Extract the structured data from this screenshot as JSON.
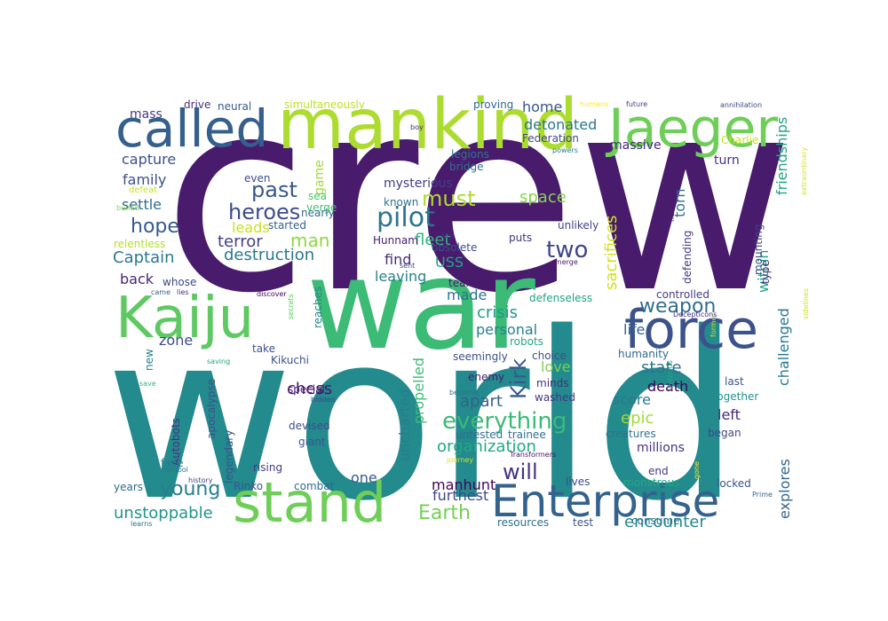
{
  "chart_data": {
    "type": "wordcloud",
    "words": [
      {
        "text": "crew",
        "color": "#481b6d"
      },
      {
        "text": "world",
        "color": "#238a8d"
      },
      {
        "text": "war",
        "color": "#3bbb75"
      },
      {
        "text": "mankind",
        "color": "#addc30"
      },
      {
        "text": "called",
        "color": "#355f8d"
      },
      {
        "text": "Jaeger",
        "color": "#6ece58"
      },
      {
        "text": "Kaiju",
        "color": "#5ec962"
      },
      {
        "text": "force",
        "color": "#3b528b"
      },
      {
        "text": "stand",
        "color": "#6ece58"
      },
      {
        "text": "Enterprise",
        "color": "#33638d"
      },
      {
        "text": "everything",
        "color": "#3aba76"
      },
      {
        "text": "heroes",
        "color": "#3e4c8a"
      },
      {
        "text": "pilot",
        "color": "#2c738e"
      },
      {
        "text": "must",
        "color": "#addc30"
      },
      {
        "text": "two",
        "color": "#404588"
      },
      {
        "text": "past",
        "color": "#38588c"
      },
      {
        "text": "hope",
        "color": "#375b8d"
      },
      {
        "text": "man",
        "color": "#90d743"
      },
      {
        "text": "weapon",
        "color": "#2e6e8e"
      },
      {
        "text": "Kirk",
        "color": "#38588c"
      },
      {
        "text": "will",
        "color": "#46327e"
      },
      {
        "text": "Earth",
        "color": "#75d054"
      },
      {
        "text": "unstoppable",
        "color": "#1f968b"
      },
      {
        "text": "young",
        "color": "#277f8e"
      },
      {
        "text": "encounter",
        "color": "#24878e"
      },
      {
        "text": "organization",
        "color": "#22a884"
      },
      {
        "text": "destruction",
        "color": "#2a778e"
      },
      {
        "text": "terror",
        "color": "#423f85"
      },
      {
        "text": "Captain",
        "color": "#2a788e"
      },
      {
        "text": "leads",
        "color": "#c8e020"
      },
      {
        "text": "fleet",
        "color": "#2fb47c"
      },
      {
        "text": "detonated",
        "color": "#2a778e"
      },
      {
        "text": "home",
        "color": "#39568c"
      },
      {
        "text": "space",
        "color": "#86d549"
      },
      {
        "text": "capture",
        "color": "#3c4f8a"
      },
      {
        "text": "family",
        "color": "#3c508b"
      },
      {
        "text": "settle",
        "color": "#2f6c8e"
      },
      {
        "text": "mass",
        "color": "#453781"
      },
      {
        "text": "back",
        "color": "#482576"
      },
      {
        "text": "zone",
        "color": "#3e4989"
      },
      {
        "text": "life",
        "color": "#31668e"
      },
      {
        "text": "crisis",
        "color": "#1f988b"
      },
      {
        "text": "personal",
        "color": "#26818e"
      },
      {
        "text": "state",
        "color": "#2c738e"
      },
      {
        "text": "love",
        "color": "#7ad151"
      },
      {
        "text": "death",
        "color": "#440154"
      },
      {
        "text": "score",
        "color": "#297a8e"
      },
      {
        "text": "epic",
        "color": "#a2da37"
      },
      {
        "text": "left",
        "color": "#472d7b"
      },
      {
        "text": "chess",
        "color": "#481668"
      },
      {
        "text": "uncharted",
        "color": "#287d8e"
      },
      {
        "text": "propelled",
        "color": "#3dbc74"
      },
      {
        "text": "apart",
        "color": "#34618d"
      },
      {
        "text": "sacrifices",
        "color": "#d2e21b"
      },
      {
        "text": "friendships",
        "color": "#20a486"
      },
      {
        "text": "within",
        "color": "#1fa088"
      },
      {
        "text": "challenged",
        "color": "#2a788e"
      },
      {
        "text": "explores",
        "color": "#31668e"
      },
      {
        "text": "torn",
        "color": "#2d708e"
      },
      {
        "text": "find",
        "color": "#472d7b"
      },
      {
        "text": "leaving",
        "color": "#25838e"
      },
      {
        "text": "made",
        "color": "#2c728e"
      },
      {
        "text": "USS",
        "color": "#21a685"
      },
      {
        "text": "one",
        "color": "#365c8d"
      },
      {
        "text": "furthest",
        "color": "#3f4788"
      },
      {
        "text": "manhunt",
        "color": "#450457"
      },
      {
        "text": "massive",
        "color": "#482878"
      },
      {
        "text": "Federation",
        "color": "#3e4989"
      },
      {
        "text": "proving",
        "color": "#31678e"
      },
      {
        "text": "simultaneously",
        "color": "#c0df25"
      },
      {
        "text": "drive",
        "color": "#46327e"
      },
      {
        "text": "neural",
        "color": "#38598c"
      },
      {
        "text": "game",
        "color": "#a0da39"
      },
      {
        "text": "sea",
        "color": "#4ac16d"
      },
      {
        "text": "verge",
        "color": "#48c16e"
      },
      {
        "text": "nearly",
        "color": "#2f6c8e"
      },
      {
        "text": "started",
        "color": "#34618d"
      },
      {
        "text": "even",
        "color": "#3e4c8a"
      },
      {
        "text": "mysterious",
        "color": "#433e85"
      },
      {
        "text": "known",
        "color": "#2d718e"
      },
      {
        "text": "obsolete",
        "color": "#3c4f8a"
      },
      {
        "text": "Hunnam",
        "color": "#481a6c"
      },
      {
        "text": "teamed",
        "color": "#481b6d"
      },
      {
        "text": "legions",
        "color": "#2a778e"
      },
      {
        "text": "bridge",
        "color": "#2c738e"
      },
      {
        "text": "unlikely",
        "color": "#404588"
      },
      {
        "text": "puts",
        "color": "#46327e"
      },
      {
        "text": "defenseless",
        "color": "#20a486"
      },
      {
        "text": "controlled",
        "color": "#433e85"
      },
      {
        "text": "defending",
        "color": "#453882"
      },
      {
        "text": "turn",
        "color": "#46327e"
      },
      {
        "text": "Charlie",
        "color": "#c2df23"
      },
      {
        "text": "mounting",
        "color": "#414487"
      },
      {
        "text": "type",
        "color": "#472c7a"
      },
      {
        "text": "humanity",
        "color": "#31688e"
      },
      {
        "text": "robots",
        "color": "#22a785"
      },
      {
        "text": "seemingly",
        "color": "#3c508b"
      },
      {
        "text": "choice",
        "color": "#3d4e8a"
      },
      {
        "text": "minds",
        "color": "#46307e"
      },
      {
        "text": "washed",
        "color": "#443983"
      },
      {
        "text": "enemy",
        "color": "#482071"
      },
      {
        "text": "untested",
        "color": "#2d708e"
      },
      {
        "text": "trainee",
        "color": "#2d708e"
      },
      {
        "text": "millions",
        "color": "#46337f"
      },
      {
        "text": "creatures",
        "color": "#2c738e"
      },
      {
        "text": "began",
        "color": "#3f4889"
      },
      {
        "text": "Together",
        "color": "#21918c"
      },
      {
        "text": "last",
        "color": "#3a548c"
      },
      {
        "text": "end",
        "color": "#453781"
      },
      {
        "text": "locked",
        "color": "#3a548c"
      },
      {
        "text": "monstrous",
        "color": "#22a884"
      },
      {
        "text": "lives",
        "color": "#3e4989"
      },
      {
        "text": "consume",
        "color": "#2c738e"
      },
      {
        "text": "resources",
        "color": "#2d708e"
      },
      {
        "text": "test",
        "color": "#3a548c"
      },
      {
        "text": "Kikuchi",
        "color": "#3a548c"
      },
      {
        "text": "take",
        "color": "#3d4e8a"
      },
      {
        "text": "reaches",
        "color": "#25848e"
      },
      {
        "text": "special",
        "color": "#481f70"
      },
      {
        "text": "devised",
        "color": "#3d4e8a"
      },
      {
        "text": "giant",
        "color": "#38598c"
      },
      {
        "text": "legendary",
        "color": "#3b528b"
      },
      {
        "text": "apocalypse",
        "color": "#3b528b"
      },
      {
        "text": "new",
        "color": "#277f8e"
      },
      {
        "text": "Autobots",
        "color": "#46327e"
      },
      {
        "text": "face",
        "color": "#2a788e"
      },
      {
        "text": "rising",
        "color": "#443983"
      },
      {
        "text": "Rinko",
        "color": "#38588c"
      },
      {
        "text": "combat",
        "color": "#30698e"
      },
      {
        "text": "years",
        "color": "#2e6e8e"
      },
      {
        "text": "whose",
        "color": "#3e4a89"
      },
      {
        "text": "relentless",
        "color": "#b5de2b"
      },
      {
        "text": "defeat",
        "color": "#c8e020"
      },
      {
        "text": "buried",
        "color": "#83d34b"
      },
      {
        "text": "boy",
        "color": "#472d7b"
      },
      {
        "text": "humans",
        "color": "#fde725"
      },
      {
        "text": "future",
        "color": "#423f85"
      },
      {
        "text": "annihilation",
        "color": "#3e4989"
      },
      {
        "text": "extraordinary",
        "color": "#d8e219"
      },
      {
        "text": "powers",
        "color": "#2a778e"
      },
      {
        "text": "hero",
        "color": "#482576"
      },
      {
        "text": "former",
        "color": "#c5e021"
      },
      {
        "text": "key",
        "color": "#453882"
      },
      {
        "text": "sent",
        "color": "#3e4c8a"
      },
      {
        "text": "emerge",
        "color": "#481b6d"
      },
      {
        "text": "came",
        "color": "#365c8d"
      },
      {
        "text": "lies",
        "color": "#472f7d"
      },
      {
        "text": "discover",
        "color": "#440154"
      },
      {
        "text": "secrets",
        "color": "#5ec962"
      },
      {
        "text": "sidelines",
        "color": "#d0e11c"
      },
      {
        "text": "Decepticons",
        "color": "#472c7a"
      },
      {
        "text": "Optimus",
        "color": "#22a884"
      },
      {
        "text": "saving",
        "color": "#20a386"
      },
      {
        "text": "save",
        "color": "#35b779"
      },
      {
        "text": "hidden",
        "color": "#3e4a89"
      },
      {
        "text": "become",
        "color": "#2c728e"
      },
      {
        "text": "symbol",
        "color": "#29798e"
      },
      {
        "text": "history",
        "color": "#404588"
      },
      {
        "text": "learns",
        "color": "#2d708e"
      },
      {
        "text": "journey",
        "color": "#d8e219"
      },
      {
        "text": "Transformers",
        "color": "#481668"
      },
      {
        "text": "gone",
        "color": "#fde725"
      },
      {
        "text": "Prime",
        "color": "#31678e"
      }
    ]
  }
}
